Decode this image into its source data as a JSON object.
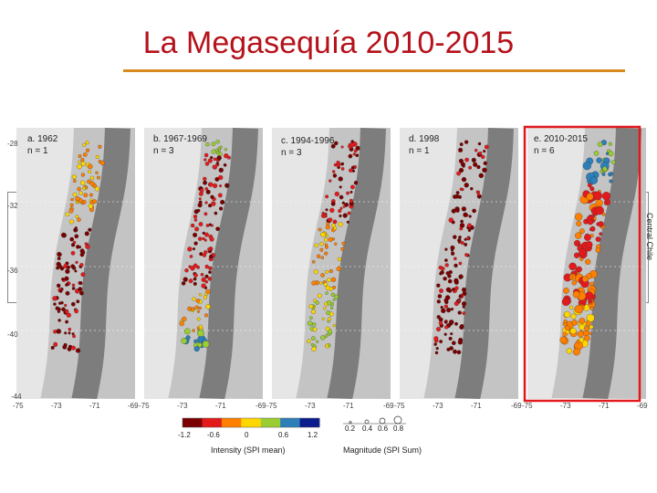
{
  "slide": {
    "title": "La Megasequía 2010-2015"
  },
  "panels": [
    {
      "label": "a. 1962",
      "n": "n = 1"
    },
    {
      "label": "b. 1967-1969",
      "n": "n = 3"
    },
    {
      "label": "c. 1994-1996",
      "n": "n = 3"
    },
    {
      "label": "d. 1998",
      "n": "n = 1"
    },
    {
      "label": "e. 2010-2015",
      "n": "n = 6"
    }
  ],
  "latitude_labels": [
    "-28",
    "-32",
    "-36",
    "-40",
    "-44"
  ],
  "longitude_labels": [
    "-75",
    "-73",
    "-71",
    "-69"
  ],
  "side_label": "Central Chile",
  "intensity_legend": {
    "title": "Intensity (SPI mean)",
    "ticks": [
      "-1.2",
      "-0.6",
      "0",
      "0.6",
      "1.2"
    ],
    "colors": [
      "#7a0000",
      "#e31a1c",
      "#ff7f00",
      "#ffd700",
      "#9acd32",
      "#2c7fb8",
      "#0b1d8c"
    ]
  },
  "magnitude_legend": {
    "title": "Magnitude (SPI Sum)",
    "ticks": [
      "0.2",
      "0.4",
      "0.6",
      "0.8"
    ]
  },
  "highlight_color": "#e0191f",
  "accent_color": "#b5121b",
  "rule_color": "#d98a1e"
}
